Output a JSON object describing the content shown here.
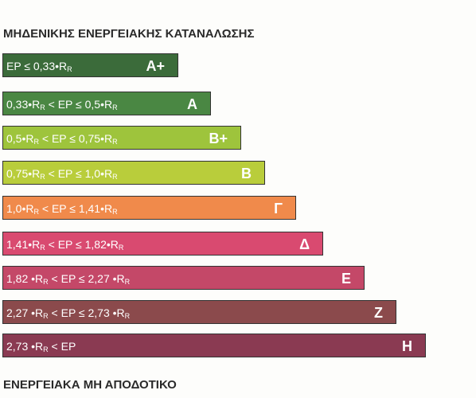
{
  "header": {
    "title": "ΜΗΔΕΝΙΚΗΣ ΕΝΕΡΓΕΙΑΚΗΣ ΚΑΤΑΝΑΛΩΣΗΣ"
  },
  "classes": [
    {
      "label": "A+",
      "color": "#3b6b3a",
      "range": [
        "EP ≤ 0,33•R",
        "R"
      ]
    },
    {
      "label": "A",
      "color": "#4a8743",
      "range": [
        "0,33•R",
        "R",
        " < EP ≤ 0,5•R",
        "R"
      ]
    },
    {
      "label": "B+",
      "color": "#9ec43c",
      "range": [
        "0,5•R",
        "R",
        " < EP ≤ 0,75•R",
        "R"
      ]
    },
    {
      "label": "B",
      "color": "#b9cd3b",
      "range": [
        "0,75•R",
        "R",
        " < EP ≤ 1,0•R",
        "R"
      ]
    },
    {
      "label": "Γ",
      "color": "#f08a4b",
      "range": [
        "1,0•R",
        "R",
        " < EP ≤ 1,41•R",
        "R"
      ]
    },
    {
      "label": "Δ",
      "color": "#d94a70",
      "range": [
        "1,41•R",
        "R",
        " < EP ≤ 1,82•R",
        "R"
      ]
    },
    {
      "label": "Ε",
      "color": "#c44868",
      "range": [
        "1,82 •R",
        "R",
        " < EP ≤ 2,27 •R",
        "R"
      ]
    },
    {
      "label": "Ζ",
      "color": "#8b4a4c",
      "range": [
        "2,27 •R",
        "R",
        " < EP ≤ 2,73 •R",
        "R"
      ]
    },
    {
      "label": "Η",
      "color": "#8a3a52",
      "range": [
        "2,73 •R",
        "R",
        " < EP"
      ]
    }
  ],
  "footer": {
    "title": "ΕΝΕΡΓΕΙΑΚΑ ΜΗ ΑΠΟΔΟΤΙΚΟ"
  }
}
